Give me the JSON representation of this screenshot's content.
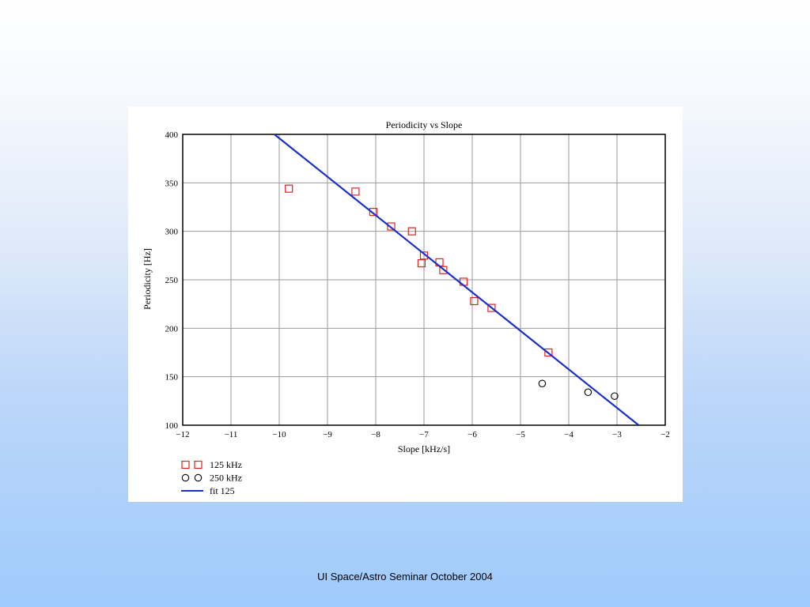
{
  "footer": "UI Space/Astro Seminar October 2004",
  "chart_data": {
    "type": "scatter",
    "title": "Periodicity vs Slope",
    "xlabel": "Slope [kHz/s]",
    "ylabel": "Periodicity [Hz]",
    "xlim": [
      -12,
      -2
    ],
    "ylim": [
      100,
      400
    ],
    "xticks": [
      -12,
      -11,
      -10,
      -9,
      -8,
      -7,
      -6,
      -5,
      -4,
      -3,
      -2
    ],
    "yticks": [
      100,
      150,
      200,
      250,
      300,
      350,
      400
    ],
    "xtick_labels": [
      "−12",
      "−11",
      "−10",
      "−9",
      "−8",
      "−7",
      "−6",
      "−5",
      "−4",
      "−3",
      "−2"
    ],
    "ytick_labels": [
      "100",
      "150",
      "200",
      "250",
      "300",
      "350",
      "400"
    ],
    "grid": true,
    "legend_position": "bottom-left",
    "series": [
      {
        "name": "125 kHz",
        "marker": "square",
        "color": "#dd2222",
        "points": [
          [
            -9.8,
            344
          ],
          [
            -8.42,
            341
          ],
          [
            -8.05,
            320
          ],
          [
            -7.68,
            305
          ],
          [
            -7.25,
            300
          ],
          [
            -7.0,
            275
          ],
          [
            -7.05,
            267
          ],
          [
            -6.68,
            268
          ],
          [
            -6.6,
            260
          ],
          [
            -6.18,
            248
          ],
          [
            -5.96,
            228
          ],
          [
            -5.6,
            221
          ],
          [
            -4.42,
            175
          ]
        ]
      },
      {
        "name": "250 kHz",
        "marker": "circle",
        "color": "#000000",
        "points": [
          [
            -4.55,
            143
          ],
          [
            -3.6,
            134
          ],
          [
            -3.05,
            130
          ]
        ]
      },
      {
        "name": "fit 125",
        "marker": "line",
        "color": "#1a2ecc",
        "points": [
          [
            -10.1,
            400
          ],
          [
            -2.55,
            100
          ]
        ]
      }
    ]
  }
}
